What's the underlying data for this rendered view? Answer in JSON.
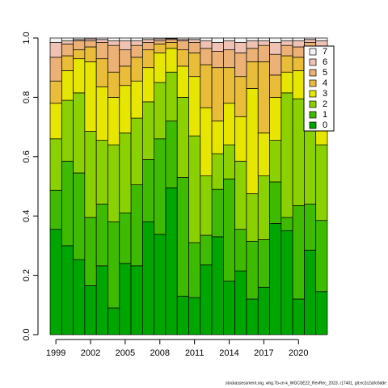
{
  "chart_data": {
    "type": "stacked_bar",
    "categories": [
      "1999",
      null,
      null,
      "2002",
      null,
      null,
      "2005",
      null,
      null,
      "2008",
      null,
      null,
      "2011",
      null,
      null,
      "2014",
      null,
      null,
      "2017",
      null,
      null,
      "2020",
      null,
      null
    ],
    "series": [
      {
        "name": "0",
        "color": "#00A600",
        "values": [
          0.355,
          0.3,
          0.253,
          0.165,
          0.232,
          0.09,
          0.24,
          0.232,
          0.38,
          0.338,
          0.495,
          0.13,
          0.125,
          0.235,
          0.33,
          0.18,
          0.215,
          0.12,
          0.16,
          0.375,
          0.35,
          0.12,
          0.285,
          0.145
        ]
      },
      {
        "name": "1",
        "color": "#3EBB00",
        "values": [
          0.132,
          0.285,
          0.292,
          0.23,
          0.208,
          0.29,
          0.17,
          0.273,
          0.21,
          0.322,
          0.225,
          0.4,
          0.185,
          0.1,
          0.16,
          0.345,
          0.14,
          0.195,
          0.16,
          0.14,
          0.045,
          0.315,
          0.155,
          0.24
        ]
      },
      {
        "name": "2",
        "color": "#8BD000",
        "values": [
          0.173,
          0.205,
          0.27,
          0.29,
          0.215,
          0.26,
          0.27,
          0.225,
          0.195,
          0.19,
          0.165,
          0.27,
          0.36,
          0.2,
          0.12,
          0.115,
          0.23,
          0.16,
          0.215,
          0.14,
          0.42,
          0.36,
          0.29,
          0.255
        ]
      },
      {
        "name": "3",
        "color": "#E6E600",
        "values": [
          0.12,
          0.1,
          0.115,
          0.235,
          0.18,
          0.16,
          0.16,
          0.125,
          0.115,
          0.1,
          0.08,
          0.105,
          0.2,
          0.23,
          0.11,
          0.14,
          0.15,
          0.355,
          0.145,
          0.145,
          0.07,
          0.095,
          0.13,
          0.09
        ]
      },
      {
        "name": "4",
        "color": "#E9BD3A",
        "values": [
          0.075,
          0.05,
          0.03,
          0.05,
          0.095,
          0.085,
          0.065,
          0.08,
          0.06,
          0.03,
          0.02,
          0.055,
          0.08,
          0.145,
          0.18,
          0.12,
          0.135,
          0.09,
          0.24,
          0.075,
          0.055,
          0.045,
          0.09,
          0.14
        ]
      },
      {
        "name": "5",
        "color": "#ECB176",
        "values": [
          0.08,
          0.04,
          0.03,
          0.02,
          0.055,
          0.09,
          0.055,
          0.04,
          0.025,
          0.01,
          0.01,
          0.03,
          0.035,
          0.055,
          0.055,
          0.06,
          0.08,
          0.045,
          0.055,
          0.07,
          0.035,
          0.035,
          0.035,
          0.085
        ]
      },
      {
        "name": "6",
        "color": "#EFC2B3",
        "values": [
          0.05,
          0.01,
          0.005,
          0.007,
          0.01,
          0.015,
          0.03,
          0.015,
          0.01,
          0.007,
          0.003,
          0.005,
          0.01,
          0.025,
          0.03,
          0.03,
          0.035,
          0.025,
          0.015,
          0.04,
          0.015,
          0.02,
          0.01,
          0.035
        ]
      },
      {
        "name": "7",
        "color": "#F2F2F2",
        "values": [
          0.015,
          0.01,
          0.005,
          0.003,
          0.005,
          0.01,
          0.01,
          0.01,
          0.005,
          0.003,
          0.002,
          0.005,
          0.005,
          0.01,
          0.015,
          0.01,
          0.015,
          0.01,
          0.01,
          0.015,
          0.01,
          0.01,
          0.005,
          0.01
        ]
      }
    ],
    "ylim": [
      0,
      1
    ],
    "yticks": [
      {
        "value": 0,
        "label": "0.0"
      },
      0.2,
      0.4,
      0.6,
      0.8,
      {
        "value": 1,
        "label": "1.0"
      }
    ],
    "legend": "topright",
    "footnote": "stockassessment.org, whg.7b-ce-k_WGCSE22_RevRec_2023, r17401, git:ec2c2a0c6dde"
  }
}
